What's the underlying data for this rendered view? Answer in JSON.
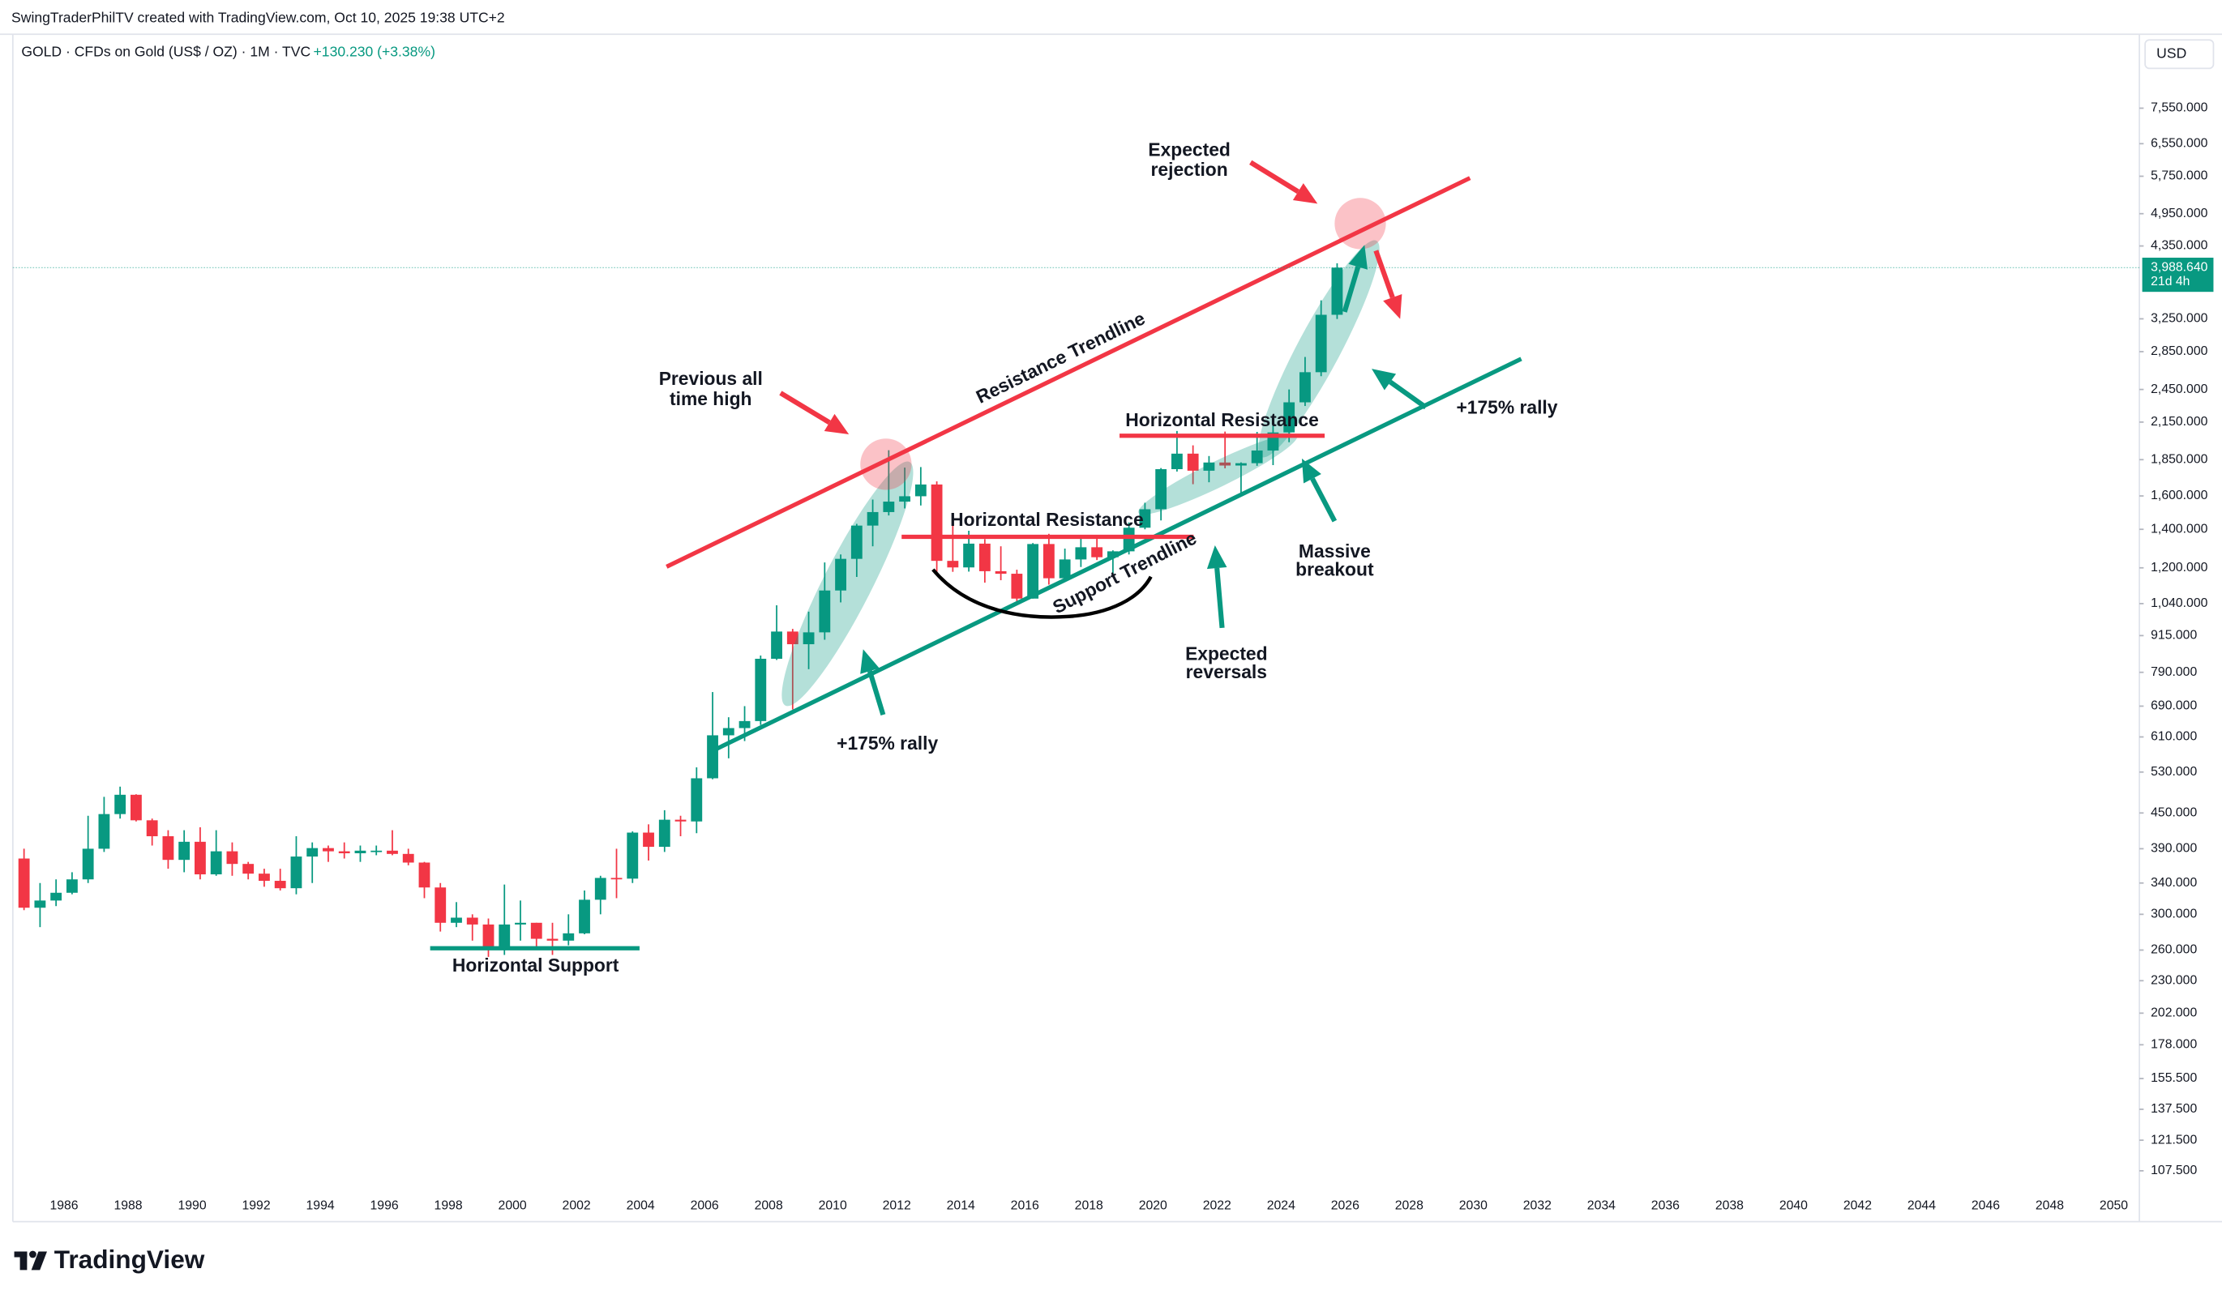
{
  "header": {
    "credit": "SwingTraderPhilTV created with TradingView.com, Oct 10, 2025 19:38 UTC+2",
    "symbol": "GOLD · CFDs on Gold (US$ / OZ) · 1M · TVC",
    "change": "+130.230 (+3.38%)",
    "currency": "USD"
  },
  "chart_data": {
    "type": "candlestick",
    "log_scale": true,
    "xlim": [
      1984.4,
      2050.8
    ],
    "ylim": [
      100,
      10150
    ],
    "xticks": [
      1986,
      1988,
      1990,
      1992,
      1994,
      1996,
      1998,
      2000,
      2002,
      2004,
      2006,
      2008,
      2010,
      2012,
      2014,
      2016,
      2018,
      2020,
      2022,
      2024,
      2026,
      2028,
      2030,
      2032,
      2034,
      2036,
      2038,
      2040,
      2042,
      2044,
      2046,
      2048,
      2050
    ],
    "yticks": [
      {
        "value": 107.5,
        "label": "107.500"
      },
      {
        "value": 121.5,
        "label": "121.500"
      },
      {
        "value": 137.5,
        "label": "137.500"
      },
      {
        "value": 155.5,
        "label": "155.500"
      },
      {
        "value": 178,
        "label": "178.000"
      },
      {
        "value": 202,
        "label": "202.000"
      },
      {
        "value": 230,
        "label": "230.000"
      },
      {
        "value": 260,
        "label": "260.000"
      },
      {
        "value": 300,
        "label": "300.000"
      },
      {
        "value": 340,
        "label": "340.000"
      },
      {
        "value": 390,
        "label": "390.000"
      },
      {
        "value": 450,
        "label": "450.000"
      },
      {
        "value": 530,
        "label": "530.000"
      },
      {
        "value": 610,
        "label": "610.000"
      },
      {
        "value": 690,
        "label": "690.000"
      },
      {
        "value": 790,
        "label": "790.000"
      },
      {
        "value": 915,
        "label": "915.000"
      },
      {
        "value": 1040,
        "label": "1,040.000"
      },
      {
        "value": 1200,
        "label": "1,200.000"
      },
      {
        "value": 1400,
        "label": "1,400.000"
      },
      {
        "value": 1600,
        "label": "1,600.000"
      },
      {
        "value": 1850,
        "label": "1,850.000"
      },
      {
        "value": 2150,
        "label": "2,150.000"
      },
      {
        "value": 2450,
        "label": "2,450.000"
      },
      {
        "value": 2850,
        "label": "2,850.000"
      },
      {
        "value": 3250,
        "label": "3,250.000"
      },
      {
        "value": 4350,
        "label": "4,350.000"
      },
      {
        "value": 4950,
        "label": "4,950.000"
      },
      {
        "value": 5750,
        "label": "5,750.000"
      },
      {
        "value": 6550,
        "label": "6,550.000"
      },
      {
        "value": 7550,
        "label": "7,550.000"
      }
    ],
    "x": [
      1984.75,
      1985.25,
      1985.75,
      1986.25,
      1986.75,
      1987.25,
      1987.75,
      1988.25,
      1988.75,
      1989.25,
      1989.75,
      1990.25,
      1990.75,
      1991.25,
      1991.75,
      1992.25,
      1992.75,
      1993.25,
      1993.75,
      1994.25,
      1994.75,
      1995.25,
      1995.75,
      1996.25,
      1996.75,
      1997.25,
      1997.75,
      1998.25,
      1998.75,
      1999.25,
      1999.75,
      2000.25,
      2000.75,
      2001.25,
      2001.75,
      2002.25,
      2002.75,
      2003.25,
      2003.75,
      2004.25,
      2004.75,
      2005.25,
      2005.75,
      2006.25,
      2006.75,
      2007.25,
      2007.75,
      2008.25,
      2008.75,
      2009.25,
      2009.75,
      2010.25,
      2010.75,
      2011.25,
      2011.75,
      2012.25,
      2012.75,
      2013.25,
      2013.75,
      2014.25,
      2014.75,
      2015.25,
      2015.75,
      2016.25,
      2016.75,
      2017.25,
      2017.75,
      2018.25,
      2018.75,
      2019.25,
      2019.75,
      2020.25,
      2020.75,
      2021.25,
      2021.75,
      2022.25,
      2022.75,
      2023.25,
      2023.75,
      2024.25,
      2024.75,
      2025.25,
      2025.75
    ],
    "open": [
      375,
      308,
      317,
      327,
      345,
      390,
      448,
      484,
      437,
      410,
      373,
      401,
      352,
      386,
      367,
      353,
      343,
      333,
      378,
      391,
      386,
      383,
      387,
      387,
      382,
      369,
      334,
      290,
      296,
      288,
      261,
      288,
      290,
      272,
      270,
      278,
      318,
      347,
      346,
      416,
      393,
      438,
      435,
      517,
      614,
      632,
      650,
      834,
      930,
      884,
      927,
      1096,
      1244,
      1421,
      1500,
      1564,
      1598,
      1675,
      1234,
      1202,
      1322,
      1184,
      1172,
      1061,
      1320,
      1151,
      1241,
      1303,
      1252,
      1282,
      1409,
      1517,
      1781,
      1895,
      1770,
      1829,
      1807,
      1824,
      1919,
      2063,
      2327,
      2625,
      3303
    ],
    "high": [
      390,
      340,
      345,
      355,
      445,
      480,
      500,
      485,
      440,
      420,
      420,
      425,
      420,
      400,
      370,
      360,
      360,
      410,
      400,
      395,
      400,
      395,
      395,
      420,
      390,
      370,
      340,
      315,
      300,
      295,
      338,
      317,
      290,
      290,
      300,
      330,
      350,
      390,
      418,
      430,
      455,
      445,
      540,
      730,
      660,
      690,
      845,
      1033,
      940,
      1007,
      1226,
      1266,
      1431,
      1577,
      1921,
      1792,
      1796,
      1696,
      1434,
      1392,
      1346,
      1308,
      1191,
      1325,
      1375,
      1296,
      1357,
      1366,
      1287,
      1439,
      1557,
      1789,
      2075,
      1959,
      1877,
      2070,
      1830,
      2067,
      2146,
      2450,
      2790,
      3500,
      4059
    ],
    "low": [
      305,
      285,
      310,
      325,
      340,
      385,
      440,
      435,
      395,
      360,
      355,
      345,
      350,
      350,
      345,
      335,
      330,
      325,
      340,
      370,
      375,
      370,
      380,
      380,
      365,
      320,
      280,
      285,
      270,
      253,
      255,
      270,
      263,
      255,
      265,
      277,
      300,
      320,
      340,
      372,
      385,
      410,
      415,
      515,
      560,
      600,
      640,
      830,
      681,
      800,
      900,
      1045,
      1157,
      1308,
      1480,
      1522,
      1540,
      1180,
      1181,
      1182,
      1131,
      1142,
      1046,
      1061,
      1122,
      1146,
      1204,
      1238,
      1160,
      1266,
      1400,
      1451,
      1764,
      1677,
      1690,
      1787,
      1615,
      1805,
      1810,
      1984,
      2293,
      2584,
      3248
    ],
    "close": [
      308,
      317,
      327,
      345,
      390,
      448,
      484,
      437,
      410,
      373,
      401,
      352,
      386,
      367,
      353,
      343,
      333,
      378,
      391,
      386,
      383,
      387,
      387,
      382,
      369,
      334,
      290,
      296,
      288,
      261,
      288,
      290,
      272,
      270,
      278,
      318,
      347,
      346,
      416,
      393,
      438,
      435,
      517,
      614,
      632,
      650,
      834,
      930,
      884,
      927,
      1096,
      1244,
      1421,
      1500,
      1564,
      1598,
      1675,
      1234,
      1202,
      1322,
      1184,
      1172,
      1061,
      1320,
      1151,
      1241,
      1303,
      1252,
      1282,
      1409,
      1517,
      1781,
      1895,
      1770,
      1829,
      1807,
      1824,
      1919,
      2063,
      2327,
      2625,
      3303,
      3988.64
    ],
    "up_color": "#089981",
    "down_color": "#f23645",
    "last_price_label": "3,988.640",
    "countdown": "21d 4h",
    "annotations": [
      "Expected",
      "rejection",
      "Previous all",
      "time high",
      "Resistance Trendline",
      "Horizontal Resistance",
      "+175% rally",
      "Horizontal Resistance",
      "Support Trendline",
      "Massive",
      "breakout",
      "Expected",
      "reversals",
      "+175% rally",
      "Horizontal Support"
    ]
  },
  "footer": {
    "logo": "TradingView"
  }
}
